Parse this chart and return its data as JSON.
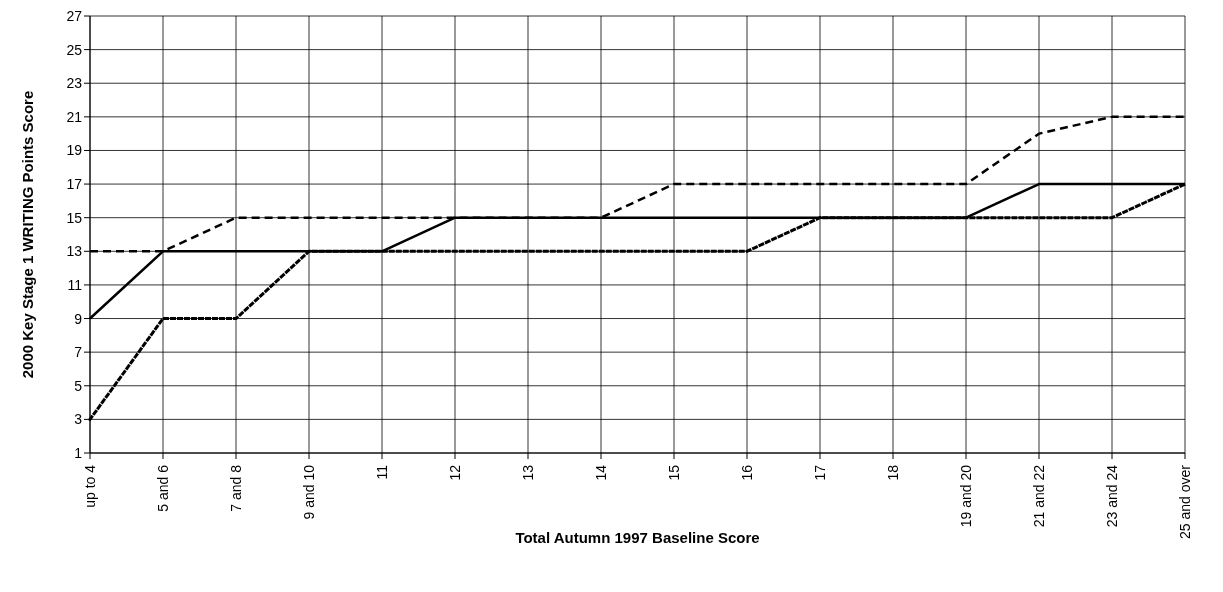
{
  "chart_data": {
    "type": "line",
    "xlabel": "Total Autumn 1997 Baseline Score",
    "ylabel": "2000 Key Stage 1 WRITING Points Score",
    "categories": [
      "up to 4",
      "5 and 6",
      "7 and 8",
      "9 and 10",
      "11",
      "12",
      "13",
      "14",
      "15",
      "16",
      "17",
      "18",
      "19 and 20",
      "21 and 22",
      "23 and 24",
      "25 and over"
    ],
    "series": [
      {
        "color": "#000000",
        "line_style": "dashed",
        "values": [
          13,
          13,
          15,
          15,
          15,
          15,
          15,
          15,
          17,
          17,
          17,
          17,
          17,
          20,
          21,
          21
        ]
      },
      {
        "color": "#000000",
        "line_style": "solid",
        "values": [
          9,
          13,
          13,
          13,
          13,
          15,
          15,
          15,
          15,
          15,
          15,
          15,
          15,
          17,
          17,
          17
        ]
      },
      {
        "color": "#000000",
        "line_style": "dotted",
        "values": [
          3,
          9,
          9,
          13,
          13,
          13,
          13,
          13,
          13,
          13,
          15,
          15,
          15,
          15,
          15,
          17
        ]
      }
    ],
    "ylim": [
      1,
      27
    ],
    "yticks": [
      1,
      3,
      5,
      7,
      9,
      11,
      13,
      15,
      17,
      19,
      21,
      23,
      25,
      27
    ],
    "grid": true,
    "marker": "none"
  }
}
